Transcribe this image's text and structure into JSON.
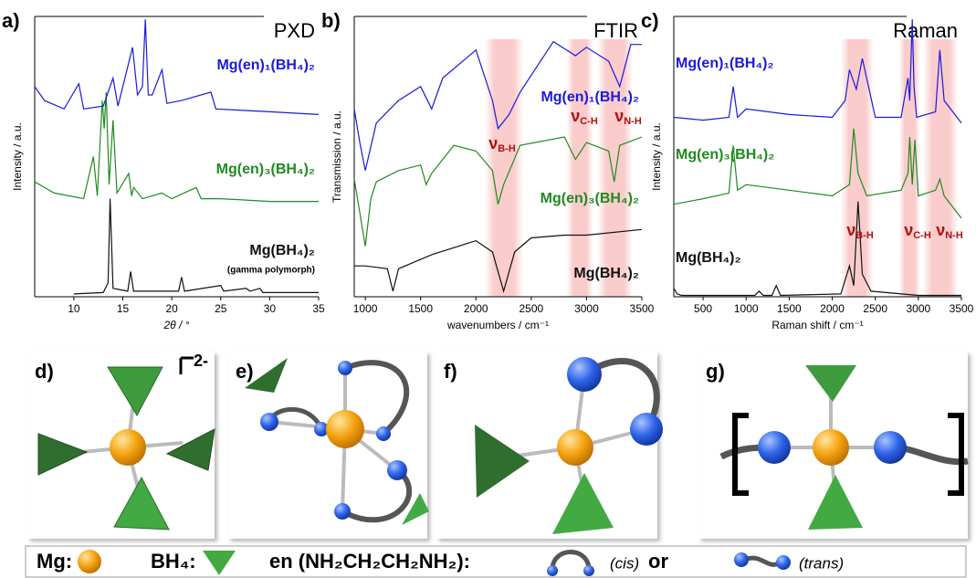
{
  "chart_data": [
    {
      "type": "line",
      "panel": "a)",
      "title": "PXD",
      "xlabel": "2θ / °",
      "ylabel": "Intensity / a.u.",
      "xlim": [
        6,
        35
      ],
      "ylim": [
        0,
        100
      ],
      "xticks": [
        10,
        15,
        20,
        25,
        30,
        35
      ],
      "annotations": [
        "(gamma polymorph)"
      ],
      "series": [
        {
          "name": "Mg(BH₄)₂",
          "color": "#111111",
          "x": [
            10,
            13,
            13.5,
            13.7,
            14,
            15.5,
            15.8,
            16.1,
            20.7,
            21,
            21.3,
            25,
            25.3,
            27.6,
            28,
            29,
            29.3,
            35
          ],
          "values": [
            1,
            1.5,
            5,
            35,
            3,
            2,
            9,
            2,
            2,
            7,
            2,
            4,
            2,
            3,
            2,
            3,
            1.5,
            1.5
          ]
        },
        {
          "name": "Mg(en)₃(BH₄)₂",
          "color": "#1f8a1f",
          "x": [
            6,
            8,
            11,
            12,
            12.4,
            12.9,
            13.1,
            13.3,
            13.6,
            14,
            14.4,
            15.6,
            15.9,
            16.1,
            17,
            19,
            20,
            22.5,
            23,
            25,
            30,
            35
          ],
          "values": [
            41,
            37,
            35,
            50,
            36,
            70,
            60,
            73,
            40,
            63,
            37,
            44,
            36,
            39,
            35,
            37,
            35,
            39,
            35,
            35,
            34,
            34
          ]
        },
        {
          "name": "Mg(en)₁(BH₄)₂",
          "color": "#1a1adb",
          "x": [
            6,
            7,
            9,
            10.5,
            11,
            13,
            14,
            14.5,
            16,
            16.5,
            17,
            17.3,
            17.6,
            18,
            19,
            19.5,
            21,
            24,
            24.5,
            30,
            35
          ],
          "values": [
            75,
            70,
            67,
            76,
            67,
            68,
            78,
            68,
            89,
            72,
            75,
            99,
            72,
            72,
            81,
            69,
            70,
            73,
            67,
            66,
            65
          ]
        }
      ]
    },
    {
      "type": "line",
      "panel": "b)",
      "title": "FTIR",
      "xlabel": "wavenumbers / cm⁻¹",
      "ylabel": "Transmission / a.u.",
      "xlim": [
        900,
        3500
      ],
      "ylim": [
        0,
        100
      ],
      "xticks": [
        1000,
        1500,
        2000,
        2500,
        3000,
        3500
      ],
      "bands": [
        [
          2080,
          2430
        ],
        [
          2820,
          3060
        ],
        [
          3100,
          3420
        ]
      ],
      "annotations": [
        {
          "main": "ν",
          "sub": "B-H"
        },
        {
          "main": "ν",
          "sub": "C-H"
        },
        {
          "main": "ν",
          "sub": "N-H"
        }
      ],
      "series": [
        {
          "name": "Mg(BH₄)₂",
          "color": "#111111",
          "x": [
            900,
            1000,
            1200,
            1250,
            1300,
            1600,
            2000,
            2150,
            2250,
            2350,
            2500,
            2800,
            3000,
            3500
          ],
          "values": [
            11,
            11,
            10,
            2,
            10,
            15,
            20,
            16,
            2,
            16,
            21,
            22,
            22,
            24
          ]
        },
        {
          "name": "Mg(en)₃(BH₄)₂",
          "color": "#1f8a1f",
          "x": [
            900,
            950,
            1000,
            1050,
            1100,
            1300,
            1500,
            1550,
            1600,
            1800,
            2000,
            2150,
            2200,
            2250,
            2400,
            2800,
            2900,
            3000,
            3200,
            3250,
            3300,
            3500
          ],
          "values": [
            42,
            30,
            18,
            35,
            41,
            45,
            47,
            40,
            44,
            54,
            52,
            45,
            33,
            40,
            54,
            57,
            49,
            55,
            52,
            41,
            54,
            57
          ]
        },
        {
          "name": "Mg(en)₁(BH₄)₂",
          "color": "#1a1adb",
          "x": [
            900,
            950,
            1000,
            1100,
            1300,
            1500,
            1600,
            1700,
            2000,
            2150,
            2200,
            2300,
            2400,
            2700,
            2900,
            3000,
            3200,
            3300,
            3400,
            3500
          ],
          "values": [
            67,
            55,
            45,
            62,
            70,
            75,
            67,
            78,
            88,
            70,
            60,
            65,
            73,
            91,
            86,
            89,
            84,
            75,
            90,
            90
          ]
        }
      ]
    },
    {
      "type": "line",
      "panel": "c)",
      "title": "Raman",
      "xlabel": "Raman shift / cm⁻¹",
      "ylabel": "Intensity / a.u.",
      "xlim": [
        160,
        3500
      ],
      "ylim": [
        0,
        100
      ],
      "xticks": [
        500,
        1000,
        1500,
        2000,
        2500,
        3000,
        3500
      ],
      "bands": [
        [
          2100,
          2480
        ],
        [
          2780,
          3020
        ],
        [
          3060,
          3460
        ]
      ],
      "annotations": [
        {
          "main": "ν",
          "sub": "B-H"
        },
        {
          "main": "ν",
          "sub": "C-H"
        },
        {
          "main": "ν",
          "sub": "N-H"
        }
      ],
      "series": [
        {
          "name": "Mg(BH₄)₂",
          "color": "#111111",
          "x": [
            160,
            200,
            250,
            1100,
            1150,
            1200,
            1300,
            1350,
            1400,
            2100,
            2200,
            2250,
            2300,
            2350,
            2450,
            3000,
            3500
          ],
          "values": [
            3,
            1,
            0.5,
            0.5,
            2,
            0.5,
            0.5,
            4,
            0.5,
            1,
            11,
            4,
            34,
            8,
            2,
            0.5,
            0.5
          ]
        },
        {
          "name": "Mg(en)₃(BH₄)₂",
          "color": "#1f8a1f",
          "x": [
            160,
            500,
            800,
            850,
            900,
            1000,
            1500,
            2000,
            2200,
            2250,
            2300,
            2400,
            2800,
            2880,
            2900,
            2930,
            2960,
            3000,
            3200,
            3250,
            3300,
            3500
          ],
          "values": [
            33,
            35,
            37,
            54,
            38,
            40,
            38,
            36,
            40,
            60,
            44,
            36,
            38,
            44,
            57,
            40,
            56,
            36,
            38,
            42,
            36,
            28
          ]
        },
        {
          "name": "Mg(en)₁(BH₄)₂",
          "color": "#1a1adb",
          "x": [
            160,
            500,
            800,
            850,
            900,
            1000,
            1500,
            2000,
            2150,
            2200,
            2280,
            2350,
            2500,
            2800,
            2880,
            2900,
            2930,
            2950,
            2980,
            3200,
            3250,
            3300,
            3500
          ],
          "values": [
            64,
            63,
            64,
            75,
            64,
            67,
            65,
            64,
            70,
            81,
            74,
            85,
            64,
            64,
            78,
            70,
            99,
            75,
            64,
            66,
            88,
            70,
            62
          ]
        }
      ]
    }
  ],
  "panels": [
    "d)",
    "e)",
    "f)",
    "g)"
  ],
  "charge": "2-",
  "key": {
    "mg": "Mg:",
    "bh4": "BH₄:",
    "en": "en (NH₂CH₂CH₂NH₂):",
    "cis": "(cis)",
    "or": "or",
    "trans": "(trans)"
  }
}
